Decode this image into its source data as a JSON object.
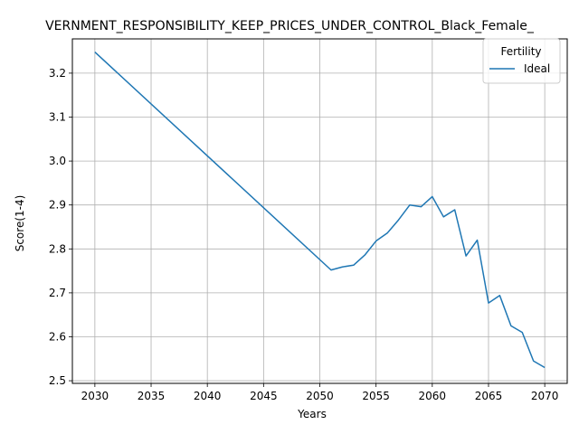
{
  "chart_data": {
    "type": "line",
    "title": "VERNMENT_RESPONSIBILITY_KEEP_PRICES_UNDER_CONTROL_Black_Female_",
    "xlabel": "Years",
    "ylabel": "Score(1-4)",
    "xlim": [
      2028.0,
      2072.0
    ],
    "ylim": [
      2.494,
      3.278
    ],
    "xticks": [
      2030,
      2035,
      2040,
      2045,
      2050,
      2055,
      2060,
      2065,
      2070
    ],
    "yticks": [
      2.5,
      2.6,
      2.7,
      2.8,
      2.9,
      3.0,
      3.1,
      3.2
    ],
    "grid": true,
    "legend": {
      "title": "Fertility",
      "placement": "top-right"
    },
    "series": [
      {
        "name": "Ideal",
        "color": "#1f77b4",
        "x": [
          2030,
          2051,
          2052,
          2053,
          2054,
          2055,
          2056,
          2057,
          2058,
          2059,
          2060,
          2061,
          2062,
          2063,
          2064,
          2065,
          2066,
          2067,
          2068,
          2069,
          2070
        ],
        "y": [
          3.248,
          2.752,
          2.759,
          2.763,
          2.786,
          2.818,
          2.836,
          2.866,
          2.9,
          2.896,
          2.919,
          2.873,
          2.889,
          2.784,
          2.82,
          2.677,
          2.694,
          2.625,
          2.61,
          2.545,
          2.53
        ]
      }
    ]
  }
}
